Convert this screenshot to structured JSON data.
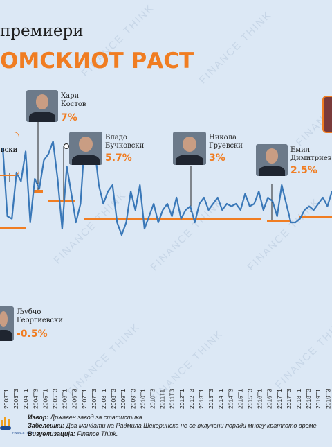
{
  "header": {
    "line1": "премиери",
    "line2": "ОМСКИОТ РАСТ"
  },
  "pms": [
    {
      "name": "вски",
      "val": ""
    },
    {
      "name": "Хари\nКостов",
      "val": "7%"
    },
    {
      "name": "Владо\nБучковски",
      "val": "5.7%"
    },
    {
      "name": "Никола\nГруевски",
      "val": "3%"
    },
    {
      "name": "Емил\nДимитриев",
      "val": "2.5%"
    },
    {
      "name": "Љубчо\nГеоргиевски",
      "val": "-0.5%"
    }
  ],
  "footer": {
    "source_label": "Извор:",
    "source": "Државен завод за статистика.",
    "notes_label": "Забелешки:",
    "notes": "Два мандати на Радмила Шекеринска не се вклучени поради многу краткото време",
    "viz_label": "Визуелизација:",
    "viz": "Finance Think.",
    "logo_text": "FINANCE THINK"
  },
  "colors": {
    "line": "#3a78b8",
    "average": "#f07d22",
    "background": "#dce8f5"
  },
  "chart_data": {
    "type": "line",
    "x_tick_labels": [
      "2003Т1",
      "2003Т3",
      "2004Т1",
      "2004Т3",
      "2005Т1",
      "2005Т3",
      "2006Т1",
      "2006Т3",
      "2007Т1",
      "2007Т3",
      "2008Т1",
      "2008Т3",
      "2009Т1",
      "2009Т3",
      "2010Т1",
      "2010Т3",
      "2011Т1",
      "2011Т3",
      "2012Т1",
      "2012Т3",
      "2013Т1",
      "2013Т3",
      "2014Т1",
      "2014Т3",
      "2015Т1",
      "2015Т3",
      "2016Т1",
      "2016Т3",
      "2017Т1",
      "2017Т3",
      "2018Т1",
      "2018Т3",
      "2019Т1",
      "2019Т3"
    ],
    "series": [
      {
        "values": [
          7.5,
          2.0,
          1.8,
          5.5,
          4.8,
          7.2,
          1.5,
          5.0,
          4.2,
          6.5,
          7.0,
          8.0,
          5.0,
          1.0,
          6.0,
          3.8,
          1.5,
          3.0,
          8.5,
          7.5,
          7.8,
          4.5,
          3.0,
          4.0,
          4.5,
          1.5,
          0.5,
          1.5,
          4.0,
          2.5,
          4.5,
          1.0,
          2.0,
          3.0,
          1.5,
          2.5,
          3.0,
          2.0,
          3.5,
          1.8,
          2.5,
          2.8,
          1.5,
          3.0,
          3.5,
          2.5,
          3.0,
          3.5,
          2.5,
          3.0,
          2.8,
          3.0,
          2.5,
          3.8,
          2.8,
          3.0,
          4.0,
          2.5,
          3.5,
          3.2,
          2.0,
          4.5,
          3.0,
          1.5,
          1.5,
          1.8,
          2.5,
          2.8,
          2.5,
          3.0,
          3.5,
          2.8,
          4.0
        ]
      }
    ],
    "averages": [
      {
        "label": "Љубчо Георгиевски",
        "value": -0.5
      },
      {
        "label": "Хари Костов",
        "value": 7
      },
      {
        "label": "Владо Бучковски",
        "value": 5.7
      },
      {
        "label": "Никола Груевски",
        "value": 3
      },
      {
        "label": "Емил Димитриев",
        "value": 2.5
      }
    ]
  }
}
